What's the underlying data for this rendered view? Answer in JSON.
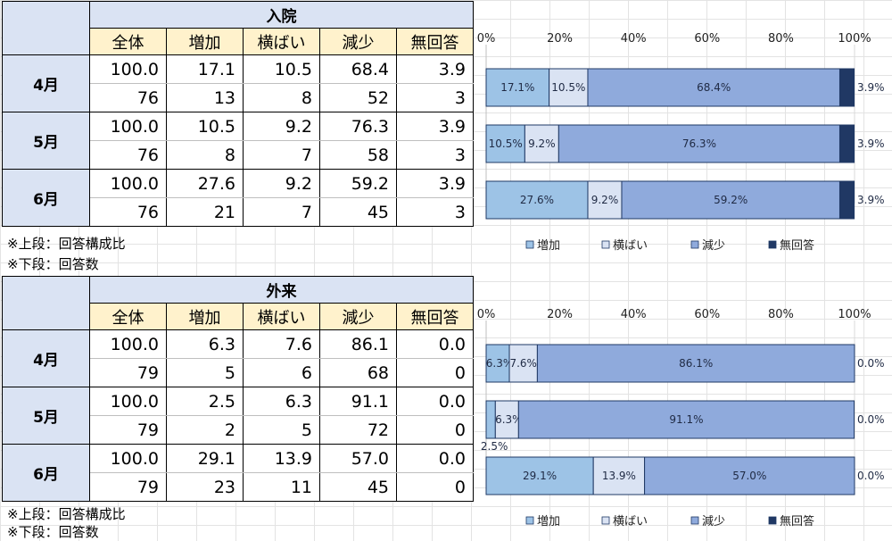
{
  "chart_data": [
    {
      "type": "table",
      "title": "入院",
      "columns": [
        "全体",
        "増加",
        "横ばい",
        "減少",
        "無回答"
      ],
      "rows": [
        {
          "label": "4月",
          "ratio": [
            "100.0",
            "17.1",
            "10.5",
            "68.4",
            "3.9"
          ],
          "count": [
            "76",
            "13",
            "8",
            "52",
            "3"
          ]
        },
        {
          "label": "5月",
          "ratio": [
            "100.0",
            "10.5",
            "9.2",
            "76.3",
            "3.9"
          ],
          "count": [
            "76",
            "8",
            "7",
            "58",
            "3"
          ]
        },
        {
          "label": "6月",
          "ratio": [
            "100.0",
            "27.6",
            "9.2",
            "59.2",
            "3.9"
          ],
          "count": [
            "76",
            "21",
            "7",
            "45",
            "3"
          ]
        }
      ],
      "notes": [
        "※上段：回答構成比",
        "※下段：回答数"
      ]
    },
    {
      "type": "bar",
      "stacked": true,
      "orientation": "horizontal",
      "categories": [
        "4月",
        "5月",
        "6月"
      ],
      "series": [
        {
          "name": "増加",
          "values": [
            17.1,
            10.5,
            27.6
          ],
          "labels": [
            "17.1%",
            "10.5%",
            "27.6%"
          ],
          "color": "#9dc3e6"
        },
        {
          "name": "横ばい",
          "values": [
            10.5,
            9.2,
            9.2
          ],
          "labels": [
            "10.5%",
            "9.2%",
            "9.2%"
          ],
          "color": "#dae3f3"
        },
        {
          "name": "減少",
          "values": [
            68.4,
            76.3,
            59.2
          ],
          "labels": [
            "68.4%",
            "76.3%",
            "59.2%"
          ],
          "color": "#8faadc"
        },
        {
          "name": "無回答",
          "values": [
            3.9,
            3.9,
            3.9
          ],
          "labels": [
            "3.9%",
            "3.9%",
            "3.9%"
          ],
          "color": "#203864"
        }
      ],
      "xlim": [
        0,
        100
      ],
      "xticks": [
        "0%",
        "20%",
        "40%",
        "60%",
        "80%",
        "100%"
      ],
      "legend": "bottom"
    },
    {
      "type": "table",
      "title": "外来",
      "columns": [
        "全体",
        "増加",
        "横ばい",
        "減少",
        "無回答"
      ],
      "rows": [
        {
          "label": "4月",
          "ratio": [
            "100.0",
            "6.3",
            "7.6",
            "86.1",
            "0.0"
          ],
          "count": [
            "79",
            "5",
            "6",
            "68",
            "0"
          ]
        },
        {
          "label": "5月",
          "ratio": [
            "100.0",
            "2.5",
            "6.3",
            "91.1",
            "0.0"
          ],
          "count": [
            "79",
            "2",
            "5",
            "72",
            "0"
          ]
        },
        {
          "label": "6月",
          "ratio": [
            "100.0",
            "29.1",
            "13.9",
            "57.0",
            "0.0"
          ],
          "count": [
            "79",
            "23",
            "11",
            "45",
            "0"
          ]
        }
      ],
      "notes": [
        "※上段：回答構成比",
        "※下段：回答数"
      ]
    },
    {
      "type": "bar",
      "stacked": true,
      "orientation": "horizontal",
      "categories": [
        "4月",
        "5月",
        "6月"
      ],
      "series": [
        {
          "name": "増加",
          "values": [
            6.3,
            2.5,
            29.1
          ],
          "labels": [
            "6.3%",
            "2.5%",
            "29.1%"
          ],
          "color": "#9dc3e6"
        },
        {
          "name": "横ばい",
          "values": [
            7.6,
            6.3,
            13.9
          ],
          "labels": [
            "7.6%",
            "6.3%",
            "13.9%"
          ],
          "color": "#dae3f3"
        },
        {
          "name": "減少",
          "values": [
            86.1,
            91.1,
            57.0
          ],
          "labels": [
            "86.1%",
            "91.1%",
            "57.0%"
          ],
          "color": "#8faadc"
        },
        {
          "name": "無回答",
          "values": [
            0.0,
            0.0,
            0.0
          ],
          "labels": [
            "0.0%",
            "0.0%",
            "0.0%"
          ],
          "color": "#203864"
        }
      ],
      "xlim": [
        0,
        100
      ],
      "xticks": [
        "0%",
        "20%",
        "40%",
        "60%",
        "80%",
        "100%"
      ],
      "legend": "bottom"
    }
  ]
}
